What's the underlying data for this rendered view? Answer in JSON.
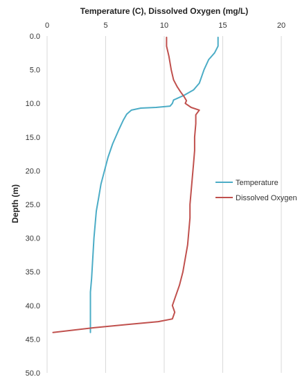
{
  "chart_data": {
    "type": "line",
    "title": "",
    "xlabel": "Temperature (C), Dissolved Oxygen (mg/L)",
    "ylabel": "Depth (m)",
    "x_axis_position": "top",
    "xlim": [
      0,
      20
    ],
    "ylim": [
      0,
      50
    ],
    "y_inverted": true,
    "x_ticks": [
      "0",
      "5",
      "10",
      "15",
      "20"
    ],
    "y_ticks": [
      "0.0",
      "5.0",
      "10.0",
      "15.0",
      "20.0",
      "25.0",
      "30.0",
      "35.0",
      "40.0",
      "45.0",
      "50.0"
    ],
    "grid": "vertical",
    "legend_position": "right",
    "series": [
      {
        "name": "Temperature",
        "color": "#4bacc6",
        "points": [
          [
            14.6,
            0.2
          ],
          [
            14.6,
            1.5
          ],
          [
            14.3,
            2.5
          ],
          [
            13.8,
            3.5
          ],
          [
            13.4,
            5.0
          ],
          [
            13.2,
            6.0
          ],
          [
            13.0,
            7.0
          ],
          [
            12.5,
            8.0
          ],
          [
            11.7,
            8.8
          ],
          [
            10.8,
            9.5
          ],
          [
            10.7,
            10.0
          ],
          [
            10.5,
            10.4
          ],
          [
            9.3,
            10.6
          ],
          [
            8.0,
            10.7
          ],
          [
            7.2,
            11.0
          ],
          [
            6.8,
            11.6
          ],
          [
            6.5,
            12.5
          ],
          [
            6.1,
            14.0
          ],
          [
            5.6,
            16.0
          ],
          [
            5.2,
            18.0
          ],
          [
            4.9,
            20.0
          ],
          [
            4.6,
            22.0
          ],
          [
            4.4,
            24.0
          ],
          [
            4.2,
            26.0
          ],
          [
            4.1,
            28.0
          ],
          [
            4.0,
            30.0
          ],
          [
            3.9,
            33.0
          ],
          [
            3.8,
            36.0
          ],
          [
            3.7,
            38.0
          ],
          [
            3.7,
            40.0
          ],
          [
            3.7,
            42.0
          ],
          [
            3.7,
            44.0
          ]
        ]
      },
      {
        "name": "Dissolved Oxygen",
        "color": "#c0504d",
        "points": [
          [
            10.2,
            0.2
          ],
          [
            10.2,
            1.5
          ],
          [
            10.4,
            3.0
          ],
          [
            10.6,
            5.0
          ],
          [
            10.8,
            6.5
          ],
          [
            11.1,
            7.5
          ],
          [
            11.4,
            8.3
          ],
          [
            11.7,
            9.0
          ],
          [
            11.9,
            9.6
          ],
          [
            11.8,
            10.0
          ],
          [
            12.3,
            10.6
          ],
          [
            13.0,
            11.0
          ],
          [
            12.7,
            11.7
          ],
          [
            12.7,
            13.0
          ],
          [
            12.6,
            15.0
          ],
          [
            12.6,
            17.0
          ],
          [
            12.5,
            19.0
          ],
          [
            12.4,
            21.0
          ],
          [
            12.3,
            23.0
          ],
          [
            12.2,
            25.0
          ],
          [
            12.2,
            27.0
          ],
          [
            12.1,
            29.0
          ],
          [
            12.0,
            31.0
          ],
          [
            11.8,
            33.0
          ],
          [
            11.6,
            35.0
          ],
          [
            11.3,
            37.0
          ],
          [
            11.0,
            38.5
          ],
          [
            10.7,
            40.0
          ],
          [
            10.9,
            41.0
          ],
          [
            10.7,
            42.0
          ],
          [
            9.5,
            42.4
          ],
          [
            7.0,
            42.8
          ],
          [
            4.0,
            43.3
          ],
          [
            0.5,
            44.0
          ]
        ]
      }
    ]
  }
}
